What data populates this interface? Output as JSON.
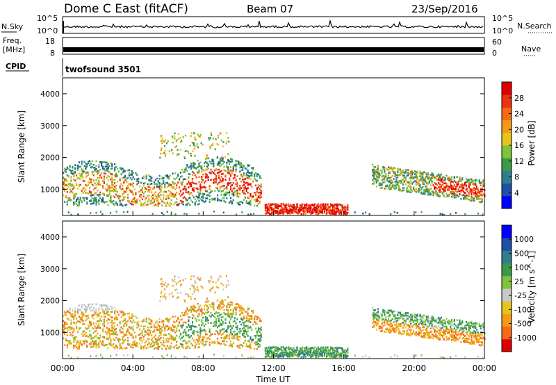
{
  "header": {
    "title": "Dome C East (fitACF)",
    "beam": "Beam 07",
    "date": "23/Sep/2016"
  },
  "noise_panel": {
    "left_label": "N.Sky",
    "left_ticks": [
      "10^5",
      "10^0"
    ],
    "right_ticks": [
      "10^5",
      "10^0"
    ],
    "right_label": "N.Search"
  },
  "freq_panel": {
    "left_label_1": "Freq.",
    "left_label_2": "[MHz]",
    "left_ticks": [
      "18",
      "8"
    ],
    "right_ticks": [
      "60",
      "0"
    ],
    "right_label": "Nave"
  },
  "cpid_panel": {
    "label": "CPID",
    "program": "twofsound 3501"
  },
  "chart_data": [
    {
      "type": "heatmap",
      "name": "Power",
      "ylabel": "Slant Range [km]",
      "yticks": [
        1000,
        2000,
        3000,
        4000
      ],
      "ylim": [
        180,
        4500
      ],
      "xlim": [
        0,
        24
      ],
      "colorbar": {
        "label": "Power [dB]",
        "ticks": [
          "28",
          "24",
          "20",
          "16",
          "12",
          "8",
          "4"
        ],
        "colors": [
          "#0000ff",
          "#1f4fa6",
          "#2e7f8e",
          "#3a9a4a",
          "#7fc43a",
          "#e6c41e",
          "#f59a17",
          "#f56a14",
          "#ee3311",
          "#e00000"
        ]
      },
      "regions": [
        {
          "t0": 0.0,
          "t1": 11.3,
          "r0": 600,
          "r1": 2050,
          "level": "mixed"
        },
        {
          "t0": 11.5,
          "t1": 16.2,
          "r0": 200,
          "r1": 650,
          "level": "high"
        },
        {
          "t0": 17.6,
          "t1": 24.0,
          "r0": 700,
          "r1": 1800,
          "level": "mixed"
        }
      ]
    },
    {
      "type": "heatmap",
      "name": "Velocity",
      "ylabel": "Slant Range [km]",
      "yticks": [
        1000,
        2000,
        3000,
        4000
      ],
      "ylim": [
        180,
        4500
      ],
      "xlim": [
        0,
        24
      ],
      "xticks": [
        "00:00",
        "04:00",
        "08:00",
        "12:00",
        "16:00",
        "20:00",
        "00:00"
      ],
      "xlabel": "Time UT",
      "colorbar": {
        "label": "Velocity [m s^-1]",
        "ticks": [
          "1000",
          "500",
          "100",
          "25",
          "-25",
          "-100",
          "-500",
          "-1000"
        ],
        "colors": [
          "#e00000",
          "#f56a14",
          "#f59a17",
          "#e6c41e",
          "#c8c8c8",
          "#7fc43a",
          "#3a9a4a",
          "#2e7f8e",
          "#1f4fa6",
          "#0000ff"
        ]
      }
    }
  ],
  "colors": {
    "frame": "#000000",
    "background": "#ffffff"
  }
}
